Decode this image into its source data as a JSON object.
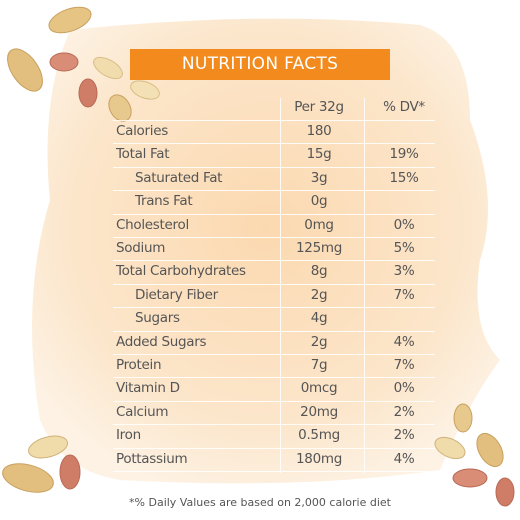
{
  "header": {
    "title": "NUTRITION FACTS"
  },
  "table": {
    "columns": [
      "Per 32g",
      "% DV*"
    ],
    "rows": [
      {
        "label": "Calories",
        "amount": "180"
      },
      {
        "label": "Total Fat",
        "amount": "15g",
        "dv": "19%"
      },
      {
        "label": "Saturated Fat",
        "amount": "3g",
        "dv": "15%",
        "indent": true
      },
      {
        "label": "Trans Fat",
        "amount": "0g",
        "indent": true
      },
      {
        "label": "Cholesterol",
        "amount": "0mg",
        "dv": "0%"
      },
      {
        "label": "Sodium",
        "amount": "125mg",
        "dv": "5%"
      },
      {
        "label": "Total Carbohydrates",
        "amount": "8g",
        "dv": "3%"
      },
      {
        "label": "Dietary Fiber",
        "amount": "2g",
        "dv": "7%",
        "indent": true
      },
      {
        "label": "Sugars",
        "amount": "4g",
        "indent": true
      },
      {
        "label": "Added Sugars",
        "amount": "2g",
        "dv": "4%"
      },
      {
        "label": "Protein",
        "amount": "7g",
        "dv": "7%"
      },
      {
        "label": "Vitamin D",
        "amount": "0mcg",
        "dv": "0%"
      },
      {
        "label": "Calcium",
        "amount": "20mg",
        "dv": "2%"
      },
      {
        "label": "Iron",
        "amount": "0.5mg",
        "dv": "2%"
      },
      {
        "label": "Pottassium",
        "amount": "180mg",
        "dv": "4%"
      }
    ]
  },
  "footnote": "*% Daily Values are based on 2,000 calorie diet"
}
